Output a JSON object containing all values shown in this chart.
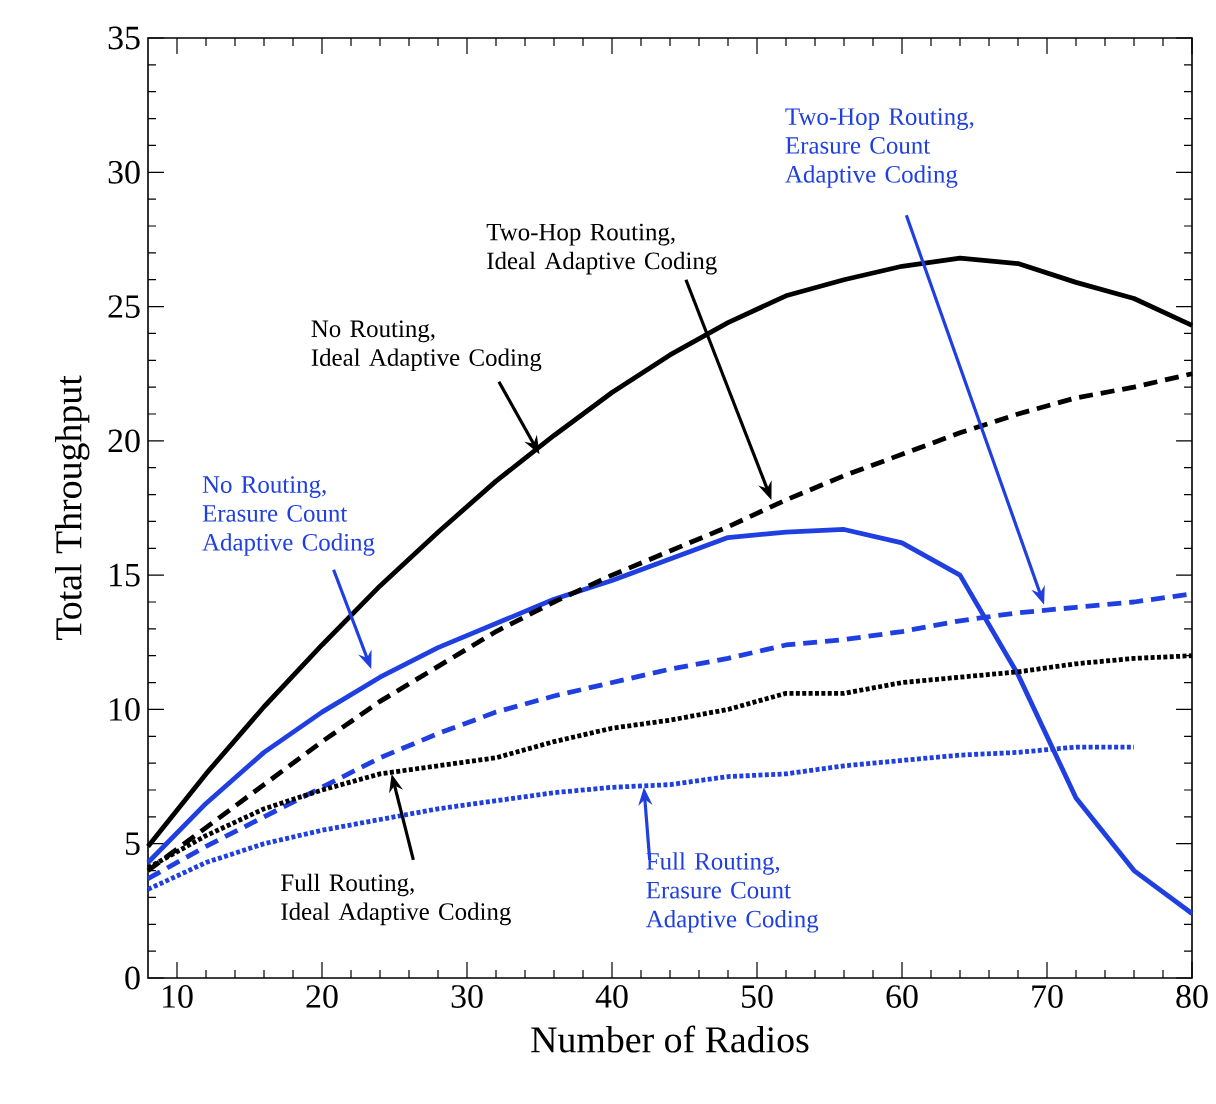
{
  "chart_data": {
    "type": "line",
    "xlabel": "Number of Radios",
    "ylabel": "Total Throughput",
    "xlim": [
      8,
      80
    ],
    "ylim": [
      0,
      35
    ],
    "xticks": [
      10,
      20,
      30,
      40,
      50,
      60,
      70,
      80
    ],
    "yticks": [
      0,
      5,
      10,
      15,
      20,
      25,
      30,
      35
    ],
    "grid": false,
    "marker": "none",
    "x": [
      8,
      12,
      16,
      20,
      24,
      28,
      32,
      36,
      40,
      44,
      48,
      52,
      56,
      60,
      64,
      68,
      72,
      76,
      80
    ],
    "series": [
      {
        "color": "#000000",
        "line_style": "solid",
        "values": [
          4.9,
          7.6,
          10.1,
          12.4,
          14.6,
          16.6,
          18.5,
          20.2,
          21.8,
          23.2,
          24.4,
          25.4,
          26.0,
          26.5,
          26.8,
          26.6,
          25.9,
          25.3,
          24.3
        ]
      },
      {
        "color": "#1f3fe0",
        "line_style": "solid",
        "values": [
          4.3,
          6.5,
          8.4,
          9.9,
          11.2,
          12.3,
          13.2,
          14.1,
          14.8,
          15.6,
          16.4,
          16.6,
          16.7,
          16.2,
          15.0,
          11.3,
          6.7,
          4.0,
          2.4
        ]
      },
      {
        "color": "#000000",
        "line_style": "dashed",
        "values": [
          4.0,
          5.6,
          7.2,
          8.8,
          10.3,
          11.6,
          12.9,
          14.0,
          15.0,
          15.9,
          16.8,
          17.8,
          18.7,
          19.5,
          20.3,
          21.0,
          21.6,
          22.0,
          22.5
        ]
      },
      {
        "color": "#1f3fe0",
        "line_style": "dashed",
        "values": [
          3.7,
          4.9,
          6.0,
          7.1,
          8.2,
          9.1,
          9.9,
          10.5,
          11.0,
          11.5,
          11.9,
          12.4,
          12.6,
          12.9,
          13.3,
          13.6,
          13.8,
          14.0,
          14.3
        ]
      },
      {
        "color": "#000000",
        "line_style": "dotted",
        "values": [
          4.1,
          5.3,
          6.3,
          7.0,
          7.6,
          7.9,
          8.2,
          8.8,
          9.3,
          9.6,
          10.0,
          10.6,
          10.6,
          11.0,
          11.2,
          11.4,
          11.7,
          11.9,
          12.0
        ]
      },
      {
        "color": "#1f3fe0",
        "line_style": "dotted",
        "values": [
          3.3,
          4.3,
          5.0,
          5.5,
          5.9,
          6.3,
          6.6,
          6.9,
          7.1,
          7.2,
          7.5,
          7.6,
          7.9,
          8.1,
          8.3,
          8.4,
          8.6,
          8.6,
          null
        ]
      }
    ],
    "annotations": [
      {
        "text": "No Routing,\nIdeal Adaptive Coding",
        "x": 35,
        "y": 19.5
      },
      {
        "text": "Two-Hop Routing,\nIdeal Adaptive Coding",
        "x": 51,
        "y": 17.8
      },
      {
        "text": "No Routing,\nErasure Count\nAdaptive Coding",
        "x": 23.4,
        "y": 11.5
      },
      {
        "text": "Full Routing,\nIdeal Adaptive Coding",
        "x": 24.8,
        "y": 7.6
      },
      {
        "text": "Full Routing,\nErasure Count\nAdaptive Coding",
        "x": 42.2,
        "y": 7.1
      },
      {
        "text": "Two-Hop Routing,\nErasure Count\nAdaptive Coding",
        "x": 69.8,
        "y": 13.9
      }
    ]
  }
}
